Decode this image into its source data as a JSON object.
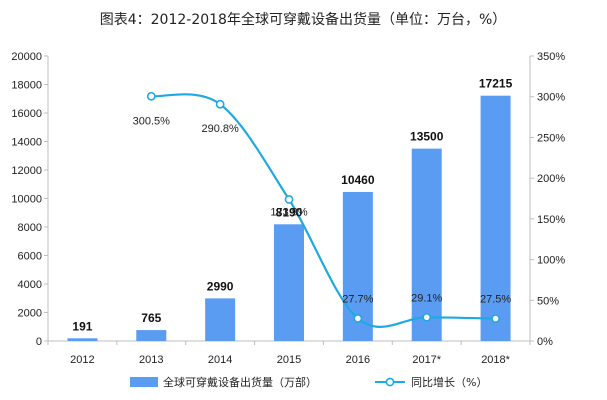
{
  "chart_data": {
    "type": "bar",
    "title": "图表4：2012-2018年全球可穿戴设备出货量（单位：万台，%）",
    "categories": [
      "2012",
      "2013",
      "2014",
      "2015",
      "2016",
      "2017*",
      "2018*"
    ],
    "series": [
      {
        "name": "全球可穿戴设备出货量（万部）",
        "type": "bar",
        "axis": "left",
        "values": [
          191,
          765,
          2990,
          8190,
          10460,
          13500,
          17215
        ],
        "labels": [
          "191",
          "765",
          "2990",
          "8190",
          "10460",
          "13500",
          "17215"
        ]
      },
      {
        "name": "同比增长（%）",
        "type": "line",
        "axis": "right",
        "values": [
          null,
          300.5,
          290.8,
          173.9,
          27.7,
          29.1,
          27.5
        ],
        "labels": [
          "",
          "300.5%",
          "290.8%",
          "173.9%",
          "27.7%",
          "29.1%",
          "27.5%"
        ]
      }
    ],
    "y_left": {
      "min": 0,
      "max": 20000,
      "ticks": [
        "0",
        "2000",
        "4000",
        "6000",
        "8000",
        "10000",
        "12000",
        "14000",
        "16000",
        "18000",
        "20000"
      ]
    },
    "y_right": {
      "min": 0,
      "max": 350,
      "ticks": [
        "0%",
        "50%",
        "100%",
        "150%",
        "200%",
        "250%",
        "300%",
        "350%"
      ]
    },
    "grid": false,
    "legend": "bottom",
    "colors": {
      "bar": "#5b9cf3",
      "line": "#1fa9e1",
      "axis": "#bfbfbf"
    }
  }
}
